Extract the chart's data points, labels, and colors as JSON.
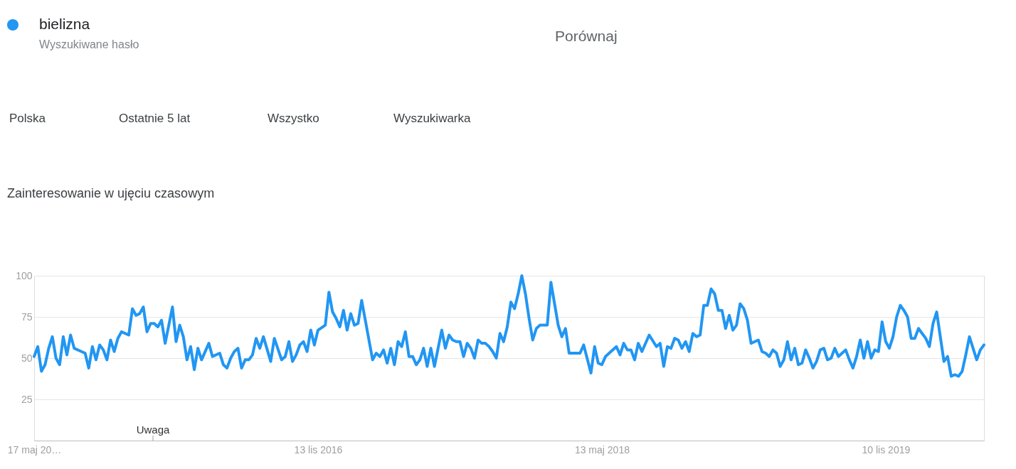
{
  "chart_data": {
    "type": "line",
    "title": "Zainteresowanie w ujęciu czasowym",
    "x": [
      "2015-05-17",
      "2015-05-24",
      "2015-05-31",
      "2015-06-07",
      "2015-06-14",
      "2015-06-21",
      "2015-06-28",
      "2015-07-05",
      "2015-07-12",
      "2015-07-19",
      "2015-07-26",
      "2015-08-02",
      "2015-08-16",
      "2015-08-23",
      "2015-08-30",
      "2015-09-06",
      "2015-09-13",
      "2015-09-20",
      "2015-09-27",
      "2015-10-04",
      "2015-10-11",
      "2015-10-18",
      "2015-10-25",
      "2015-11-01",
      "2015-11-15",
      "2015-11-22",
      "2015-11-29",
      "2015-12-06",
      "2015-12-13",
      "2015-12-20",
      "2015-12-27",
      "2016-01-03",
      "2016-01-10",
      "2016-01-17",
      "2016-01-24",
      "2016-02-07",
      "2016-02-14",
      "2016-02-21",
      "2016-02-28",
      "2016-03-06",
      "2016-03-13",
      "2016-03-20",
      "2016-03-27",
      "2016-04-03",
      "2016-04-17",
      "2016-04-24",
      "2016-05-08",
      "2016-05-15",
      "2016-05-22",
      "2016-05-29",
      "2016-06-05",
      "2016-06-12",
      "2016-06-19",
      "2016-06-26",
      "2016-07-03",
      "2016-07-10",
      "2016-07-17",
      "2016-07-24",
      "2016-07-31",
      "2016-08-14",
      "2016-08-21",
      "2016-09-04",
      "2016-09-11",
      "2016-09-18",
      "2016-09-25",
      "2016-10-02",
      "2016-10-09",
      "2016-10-16",
      "2016-10-23",
      "2016-10-30",
      "2016-11-06",
      "2016-11-13",
      "2016-11-27",
      "2016-12-04",
      "2016-12-11",
      "2016-12-18",
      "2016-12-25",
      "2017-01-01",
      "2017-01-08",
      "2017-01-15",
      "2017-01-22",
      "2017-01-29",
      "2017-02-05",
      "2017-02-26",
      "2017-03-05",
      "2017-03-12",
      "2017-03-19",
      "2017-03-26",
      "2017-04-02",
      "2017-04-09",
      "2017-04-16",
      "2017-04-23",
      "2017-04-30",
      "2017-05-07",
      "2017-05-14",
      "2017-05-21",
      "2017-05-28",
      "2017-06-04",
      "2017-06-11",
      "2017-06-18",
      "2017-06-25",
      "2017-07-09",
      "2017-07-16",
      "2017-07-23",
      "2017-07-30",
      "2017-08-06",
      "2017-08-13",
      "2017-08-20",
      "2017-08-27",
      "2017-09-03",
      "2017-09-10",
      "2017-09-17",
      "2017-09-24",
      "2017-10-01",
      "2017-10-08",
      "2017-10-15",
      "2017-10-22",
      "2017-10-29",
      "2017-11-05",
      "2017-11-12",
      "2017-11-19",
      "2017-11-26",
      "2017-12-03",
      "2017-12-10",
      "2017-12-17",
      "2017-12-24",
      "2017-12-31",
      "2018-01-07",
      "2018-01-14",
      "2018-01-28",
      "2018-02-04",
      "2018-02-11",
      "2018-02-18",
      "2018-02-25",
      "2018-03-04",
      "2018-03-11",
      "2018-04-01",
      "2018-04-08",
      "2018-04-22",
      "2018-04-29",
      "2018-05-06",
      "2018-05-13",
      "2018-05-20",
      "2018-05-27",
      "2018-06-10",
      "2018-06-17",
      "2018-06-24",
      "2018-07-01",
      "2018-07-08",
      "2018-07-15",
      "2018-07-22",
      "2018-07-29",
      "2018-08-12",
      "2018-08-26",
      "2018-09-02",
      "2018-09-09",
      "2018-09-16",
      "2018-09-23",
      "2018-09-30",
      "2018-10-07",
      "2018-10-14",
      "2018-10-21",
      "2018-10-28",
      "2018-11-04",
      "2018-11-11",
      "2018-11-18",
      "2018-11-25",
      "2018-12-02",
      "2018-12-09",
      "2018-12-16",
      "2018-12-23",
      "2018-12-30",
      "2019-01-06",
      "2019-01-13",
      "2019-01-20",
      "2019-01-27",
      "2019-02-03",
      "2019-02-10",
      "2019-02-17",
      "2019-02-24",
      "2019-03-03",
      "2019-03-10",
      "2019-03-17",
      "2019-03-24",
      "2019-03-31",
      "2019-04-07",
      "2019-04-14",
      "2019-04-21",
      "2019-04-28",
      "2019-05-05",
      "2019-05-12",
      "2019-05-19",
      "2019-05-26",
      "2019-06-02",
      "2019-06-09",
      "2019-06-16",
      "2019-06-23",
      "2019-06-30",
      "2019-07-07",
      "2019-07-14",
      "2019-07-21",
      "2019-07-28",
      "2019-08-04",
      "2019-08-11",
      "2019-08-18",
      "2019-08-25",
      "2019-09-01",
      "2019-09-08",
      "2019-09-15",
      "2019-09-22",
      "2019-09-29",
      "2019-10-06",
      "2019-10-13",
      "2019-10-20",
      "2019-10-27",
      "2019-11-03",
      "2019-11-10",
      "2019-11-17",
      "2019-11-24",
      "2019-12-01",
      "2019-12-08",
      "2019-12-15",
      "2019-12-22",
      "2019-12-29",
      "2020-01-05",
      "2020-01-12",
      "2020-01-19",
      "2020-01-26",
      "2020-02-02",
      "2020-02-09",
      "2020-02-16",
      "2020-02-23",
      "2020-03-01",
      "2020-03-08",
      "2020-03-15",
      "2020-03-22",
      "2020-03-29",
      "2020-04-05",
      "2020-04-12",
      "2020-04-19",
      "2020-04-26",
      "2020-05-03",
      "2020-05-10",
      "2020-05-17"
    ],
    "series": [
      {
        "name": "bielizna",
        "color": "#2196f3",
        "values": [
          51,
          57,
          42,
          46,
          56,
          63,
          50,
          46,
          63,
          52,
          64,
          56,
          54,
          53,
          44,
          57,
          49,
          58,
          55,
          49,
          61,
          54,
          62,
          66,
          64,
          80,
          76,
          77,
          81,
          66,
          71,
          71,
          69,
          73,
          59,
          81,
          60,
          70,
          63,
          49,
          57,
          43,
          56,
          49,
          59,
          51,
          53,
          46,
          44,
          50,
          54,
          56,
          44,
          49,
          49,
          52,
          62,
          56,
          63,
          48,
          62,
          49,
          51,
          60,
          48,
          52,
          58,
          60,
          54,
          67,
          58,
          67,
          70,
          90,
          78,
          74,
          69,
          79,
          67,
          77,
          70,
          71,
          85,
          49,
          53,
          51,
          55,
          47,
          56,
          46,
          60,
          57,
          66,
          51,
          51,
          46,
          49,
          56,
          45,
          56,
          45,
          67,
          56,
          64,
          61,
          60,
          60,
          51,
          59,
          56,
          50,
          61,
          59,
          59,
          57,
          54,
          50,
          65,
          60,
          69,
          84,
          80,
          89,
          100,
          89,
          74,
          61,
          68,
          70,
          70,
          96,
          83,
          70,
          63,
          68,
          53,
          53,
          58,
          41,
          57,
          47,
          46,
          51,
          53,
          57,
          52,
          59,
          55,
          55,
          49,
          59,
          54,
          64,
          57,
          59,
          45,
          57,
          56,
          62,
          61,
          56,
          60,
          54,
          65,
          63,
          64,
          82,
          82,
          92,
          89,
          79,
          79,
          68,
          76,
          67,
          70,
          83,
          80,
          73,
          59,
          60,
          61,
          54,
          53,
          51,
          55,
          53,
          45,
          49,
          60,
          49,
          56,
          46,
          47,
          55,
          50,
          44,
          48,
          55,
          56,
          49,
          50,
          56,
          51,
          53,
          55,
          49,
          44,
          51,
          61,
          50,
          60,
          50,
          55,
          54,
          72,
          60,
          56,
          63,
          75,
          82,
          79,
          75,
          62,
          62,
          68,
          65,
          62,
          57,
          71,
          78,
          63,
          48,
          51,
          39,
          40,
          39,
          42,
          52,
          63,
          56,
          49,
          55,
          58
        ]
      }
    ],
    "xlim": [
      "2015-05-17",
      "2020-05-17"
    ],
    "xticks": [
      {
        "value": "2015-05-17",
        "label": "17 maj 20…"
      },
      {
        "value": "2016-11-13",
        "label": "13 lis 2016"
      },
      {
        "value": "2018-05-13",
        "label": "13 maj 2018"
      },
      {
        "value": "2019-11-10",
        "label": "10 lis 2019"
      }
    ],
    "ylim": [
      0,
      100
    ],
    "yticks": [
      25,
      50,
      75,
      100
    ],
    "grid": "y",
    "legend": "top left",
    "line_style": "solid",
    "annotations": [
      "Wyszukiwane hasło",
      "Porównaj",
      "Polska",
      "Ostatnie 5 lat",
      "Wszystko",
      "Wyszukiwarka",
      "Uwaga"
    ]
  }
}
